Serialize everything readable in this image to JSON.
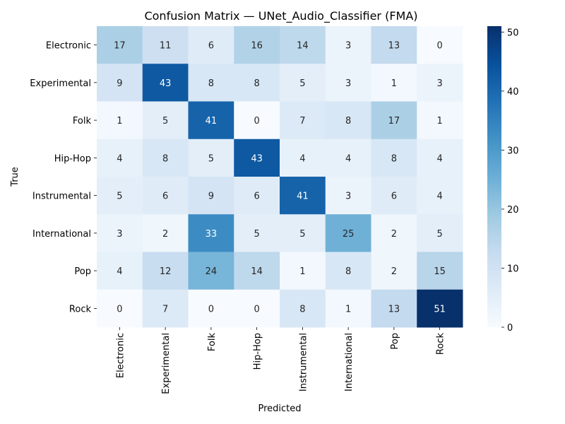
{
  "chart_data": {
    "type": "heatmap",
    "title": "Confusion Matrix — UNet_Audio_Classifier (FMA)",
    "xlabel": "Predicted",
    "ylabel": "True",
    "x_categories": [
      "Electronic",
      "Experimental",
      "Folk",
      "Hip-Hop",
      "Instrumental",
      "International",
      "Pop",
      "Rock"
    ],
    "y_categories": [
      "Electronic",
      "Experimental",
      "Folk",
      "Hip-Hop",
      "Instrumental",
      "International",
      "Pop",
      "Rock"
    ],
    "matrix": [
      [
        17,
        11,
        6,
        16,
        14,
        3,
        13,
        0
      ],
      [
        9,
        43,
        8,
        8,
        5,
        3,
        1,
        3
      ],
      [
        1,
        5,
        41,
        0,
        7,
        8,
        17,
        1
      ],
      [
        4,
        8,
        5,
        43,
        4,
        4,
        8,
        4
      ],
      [
        5,
        6,
        9,
        6,
        41,
        3,
        6,
        4
      ],
      [
        3,
        2,
        33,
        5,
        5,
        25,
        2,
        5
      ],
      [
        4,
        12,
        24,
        14,
        1,
        8,
        2,
        15
      ],
      [
        0,
        7,
        0,
        0,
        8,
        1,
        13,
        51
      ]
    ],
    "colormap": "Blues",
    "color_low": "#f7fbff",
    "color_high": "#08306b",
    "value_range": [
      0,
      51
    ],
    "colorbar_ticks": [
      0,
      10,
      20,
      30,
      40,
      50
    ]
  }
}
